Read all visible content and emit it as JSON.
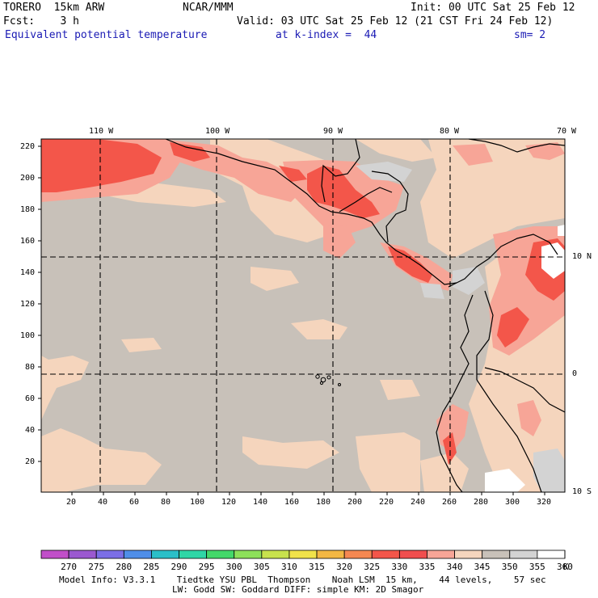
{
  "header": {
    "model": "TORERO  15km ARW",
    "center": "NCAR/MMM",
    "init": "Init: 00 UTC Sat 25 Feb 12",
    "fcst": "Fcst:    3 h",
    "valid": "Valid: 03 UTC Sat 25 Feb 12 (21 CST Fri 24 Feb 12)",
    "field": "Equivalent potential temperature",
    "level": "at k-index =  44",
    "smooth": "sm= 2"
  },
  "map": {
    "lon_labels": [
      "110 W",
      "100 W",
      "90 W",
      "80 W",
      "70 W"
    ],
    "lat_labels": [
      "10 N",
      "0",
      "10 S"
    ],
    "x_ticks": [
      "20",
      "40",
      "60",
      "80",
      "100",
      "120",
      "140",
      "160",
      "180",
      "200",
      "220",
      "240",
      "260",
      "280",
      "300",
      "320"
    ],
    "y_ticks": [
      "220",
      "200",
      "180",
      "160",
      "140",
      "120",
      "100",
      "80",
      "60",
      "40",
      "20"
    ],
    "background_color": "#c8c1b9"
  },
  "colorbar": {
    "labels": [
      "270",
      "275",
      "280",
      "285",
      "290",
      "295",
      "300",
      "305",
      "310",
      "315",
      "320",
      "325",
      "330",
      "335",
      "340",
      "345",
      "350",
      "355",
      "360"
    ],
    "unit": "K",
    "colors": [
      "#c14fc9",
      "#9b59d0",
      "#7b6ee6",
      "#4f8ee8",
      "#2bbfc8",
      "#2fd6a6",
      "#44d86a",
      "#8de05a",
      "#c8e24d",
      "#f0e24a",
      "#f2b744",
      "#f58852",
      "#f3564a",
      "#f04e4e",
      "#f7a597",
      "#f5d5bd",
      "#c8c1b9",
      "#d3d3d3",
      "#ffffff"
    ]
  },
  "footer": {
    "line1": "Model Info: V3.3.1    Tiedtke YSU PBL  Thompson    Noah LSM  15 km,    44 levels,    57 sec",
    "line2": "LW: Godd SW: Goddard DIFF: simple KM: 2D Smagor"
  }
}
